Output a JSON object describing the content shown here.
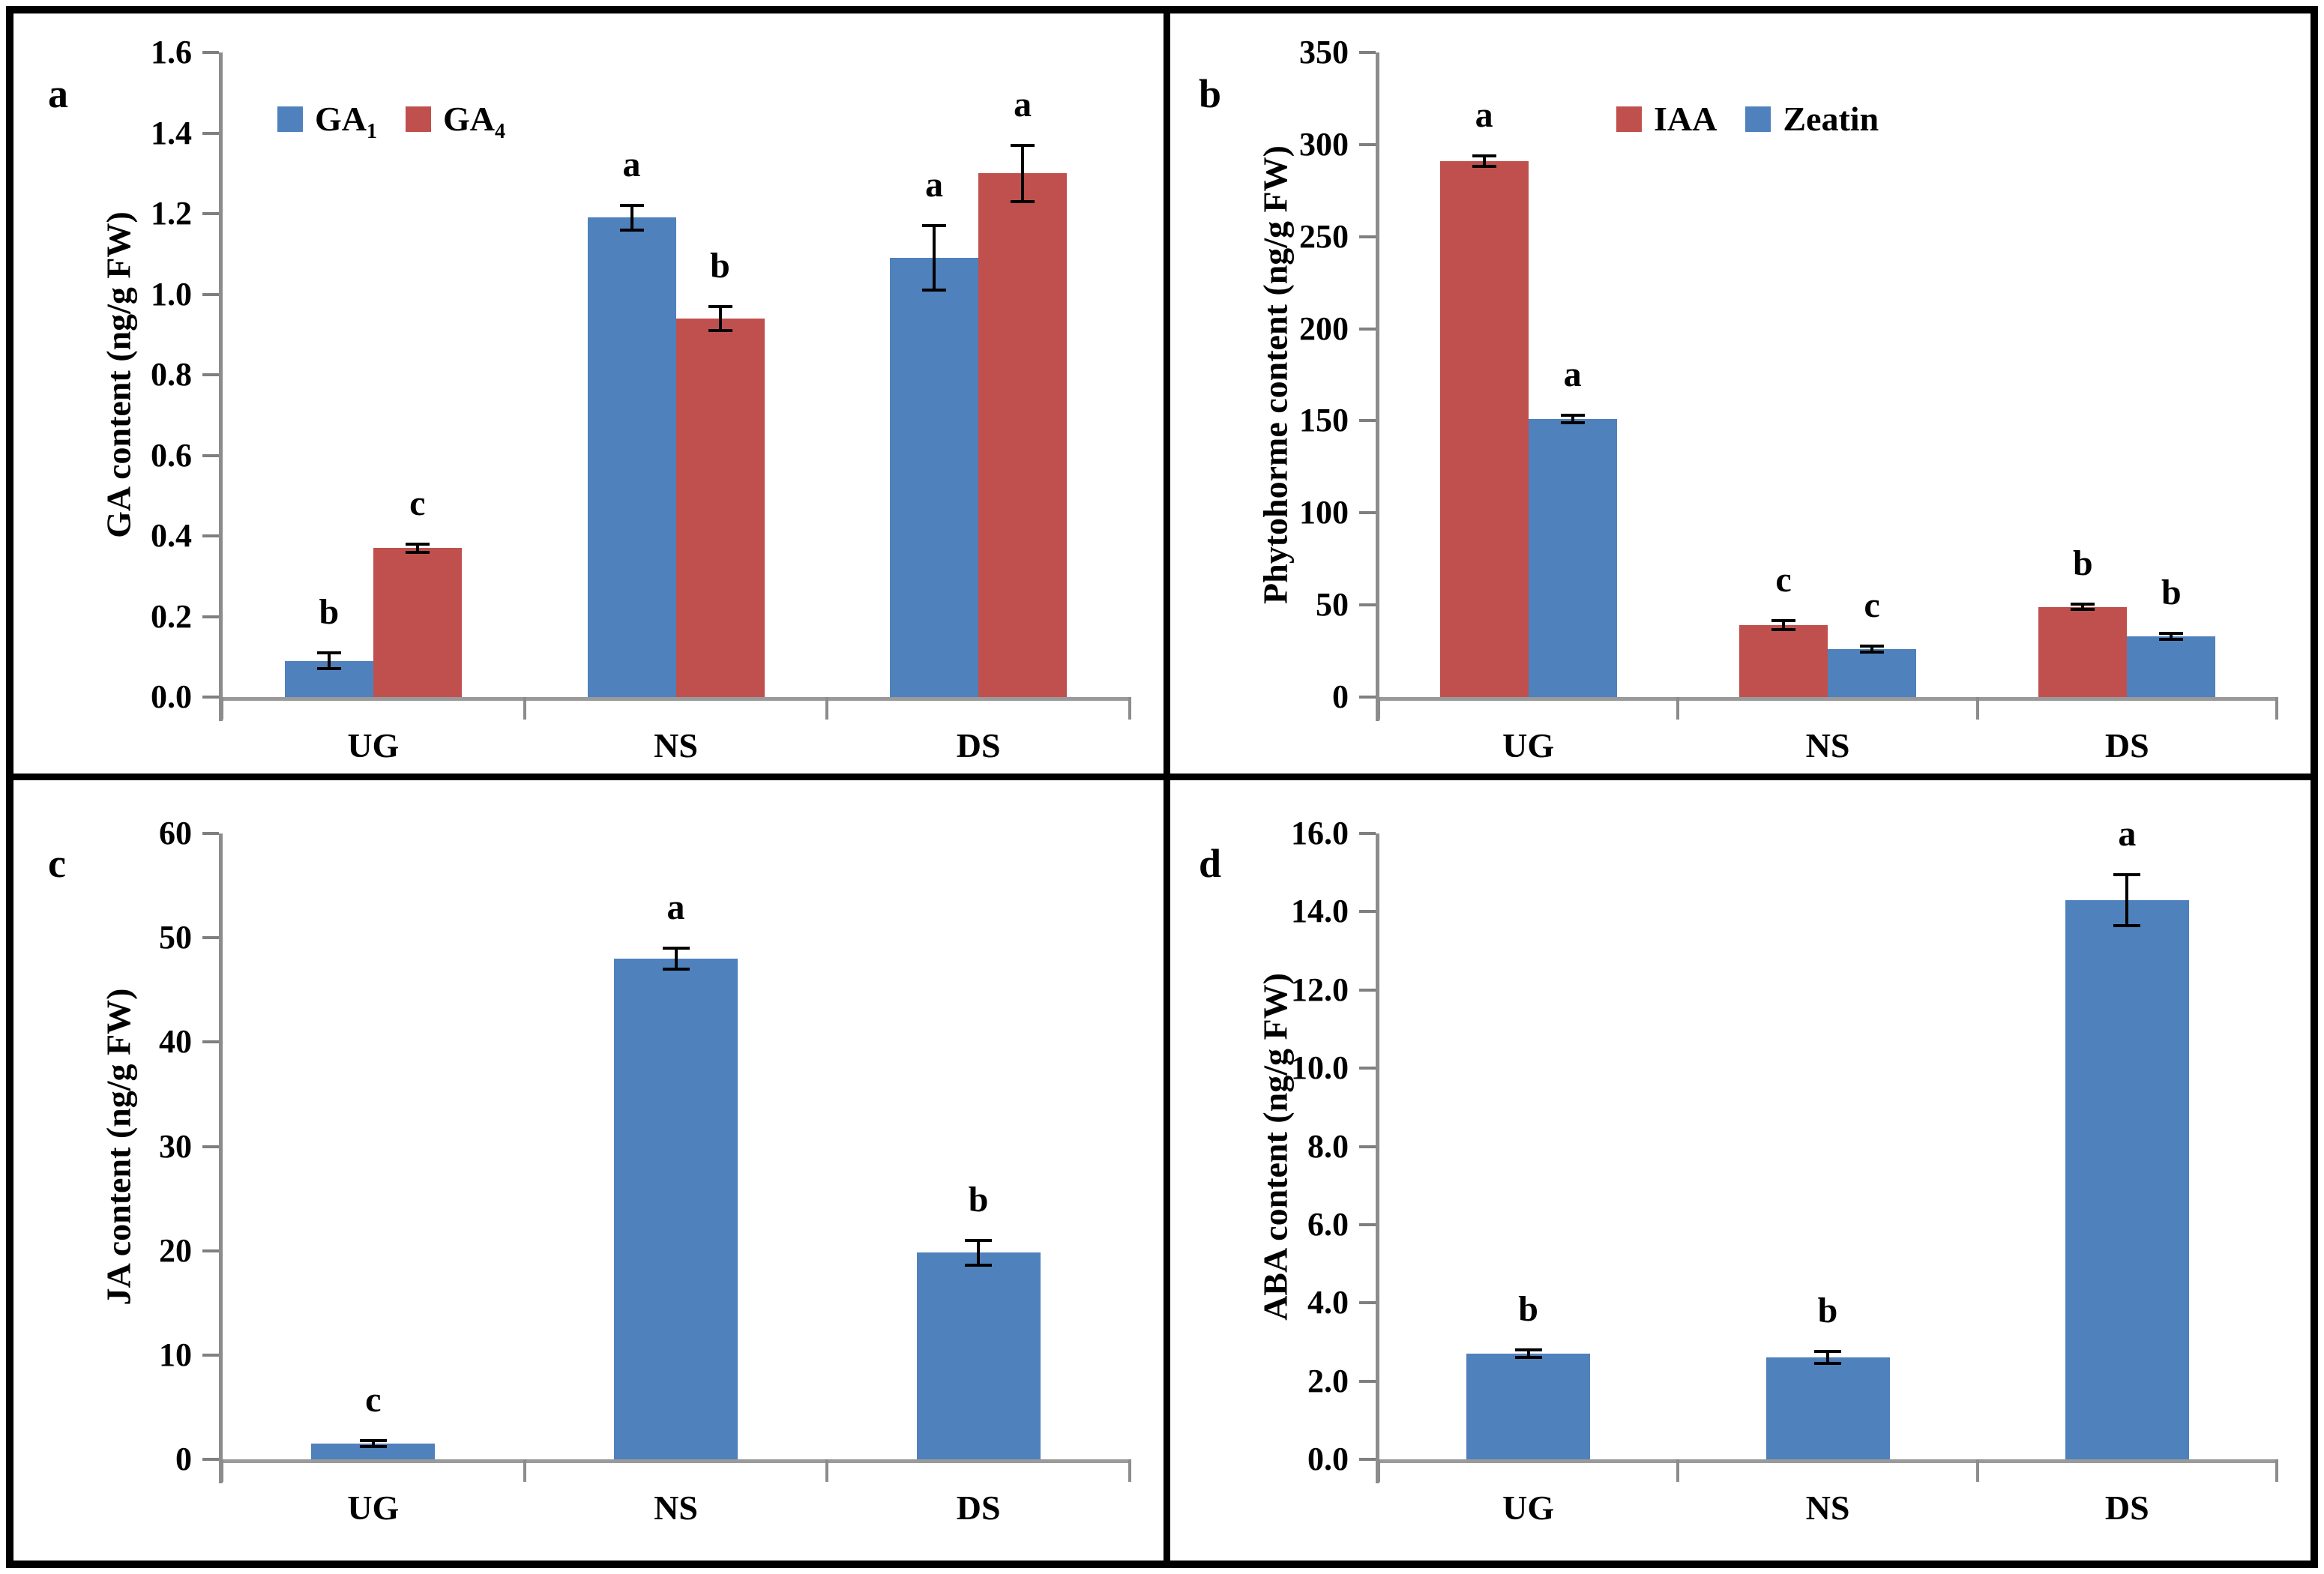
{
  "figure": {
    "background": "#ffffff",
    "border_color": "#000000"
  },
  "colors": {
    "blue": "#4F81BD",
    "red": "#C0504D"
  },
  "chart_data": [
    {
      "panel_label": "a",
      "type": "bar",
      "title": "",
      "xlabel": "",
      "ylabel": "GA content (ng/g FW)",
      "categories": [
        "UG",
        "NS",
        "DS"
      ],
      "ylim": [
        0,
        1.6
      ],
      "yticks": [
        "0.0",
        "0.2",
        "0.4",
        "0.6",
        "0.8",
        "1.0",
        "1.2",
        "1.4",
        "1.6"
      ],
      "grid": false,
      "legend_position": "top-center-left",
      "legend": [
        {
          "label": "GA",
          "sub": "1",
          "color": "#4F81BD"
        },
        {
          "label": "GA",
          "sub": "4",
          "color": "#C0504D"
        }
      ],
      "series": [
        {
          "name": "GA1",
          "color": "#4F81BD",
          "values": [
            0.09,
            1.19,
            1.09
          ],
          "errors": [
            0.02,
            0.03,
            0.08
          ],
          "letters": [
            "b",
            "a",
            "a"
          ]
        },
        {
          "name": "GA4",
          "color": "#C0504D",
          "values": [
            0.37,
            0.94,
            1.3
          ],
          "errors": [
            0.01,
            0.03,
            0.07
          ],
          "letters": [
            "c",
            "b",
            "a"
          ]
        }
      ]
    },
    {
      "panel_label": "b",
      "type": "bar",
      "title": "",
      "xlabel": "",
      "ylabel": "Phytohorme content (ng/g FW)",
      "categories": [
        "UG",
        "NS",
        "DS"
      ],
      "ylim": [
        0,
        350
      ],
      "yticks": [
        "0",
        "50",
        "100",
        "150",
        "200",
        "250",
        "300",
        "350"
      ],
      "grid": false,
      "legend_position": "top-right",
      "legend": [
        {
          "label": "IAA",
          "sub": "",
          "color": "#C0504D"
        },
        {
          "label": "Zeatin",
          "sub": "",
          "color": "#4F81BD"
        }
      ],
      "series": [
        {
          "name": "IAA",
          "color": "#C0504D",
          "values": [
            291,
            39,
            49
          ],
          "errors": [
            3,
            2.5,
            1.5
          ],
          "letters": [
            "a",
            "c",
            "b"
          ]
        },
        {
          "name": "Zeatin",
          "color": "#4F81BD",
          "values": [
            151,
            26,
            33
          ],
          "errors": [
            2,
            1.5,
            1.5
          ],
          "letters": [
            "a",
            "c",
            "b"
          ]
        }
      ]
    },
    {
      "panel_label": "c",
      "type": "bar",
      "title": "",
      "xlabel": "",
      "ylabel": "JA content (ng/g FW)",
      "categories": [
        "UG",
        "NS",
        "DS"
      ],
      "ylim": [
        0,
        60
      ],
      "yticks": [
        "0",
        "10",
        "20",
        "30",
        "40",
        "50",
        "60"
      ],
      "grid": false,
      "legend_position": "none",
      "legend": [],
      "series": [
        {
          "name": "JA",
          "color": "#4F81BD",
          "values": [
            1.5,
            48,
            19.8
          ],
          "errors": [
            0.3,
            1.0,
            1.2
          ],
          "letters": [
            "c",
            "a",
            "b"
          ]
        }
      ]
    },
    {
      "panel_label": "d",
      "type": "bar",
      "title": "",
      "xlabel": "",
      "ylabel": "ABA content (ng/g FW)",
      "categories": [
        "UG",
        "NS",
        "DS"
      ],
      "ylim": [
        0,
        16
      ],
      "yticks": [
        "0.0",
        "2.0",
        "4.0",
        "6.0",
        "8.0",
        "10.0",
        "12.0",
        "14.0",
        "16.0"
      ],
      "grid": false,
      "legend_position": "none",
      "legend": [],
      "series": [
        {
          "name": "ABA",
          "color": "#4F81BD",
          "values": [
            2.7,
            2.6,
            14.3
          ],
          "errors": [
            0.1,
            0.15,
            0.65
          ],
          "letters": [
            "b",
            "b",
            "a"
          ]
        }
      ]
    }
  ]
}
